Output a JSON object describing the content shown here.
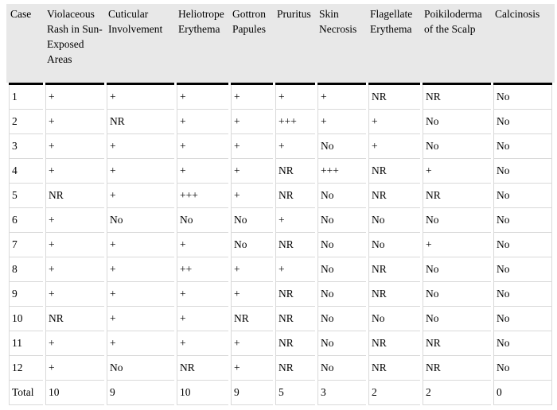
{
  "table": {
    "columns": [
      "Case",
      "Violaceous Rash in Sun-Exposed Areas",
      "Cuticular Involvement",
      "Heliotrope Erythema",
      "Gottron Papules",
      "Pruritus",
      "Skin Necrosis",
      "Flagellate Erythema",
      "Poikiloderma of the Scalp",
      "Calcinosis"
    ],
    "rows": [
      [
        "1",
        "+",
        "+",
        "+",
        "+",
        "+",
        "+",
        "NR",
        "NR",
        "No"
      ],
      [
        "2",
        "+",
        "NR",
        "+",
        "+",
        "+++",
        "+",
        "+",
        "No",
        "No"
      ],
      [
        "3",
        "+",
        "+",
        "+",
        "+",
        "+",
        "No",
        "+",
        "No",
        "No"
      ],
      [
        "4",
        "+",
        "+",
        "+",
        "+",
        "NR",
        "+++",
        "NR",
        "+",
        "No"
      ],
      [
        "5",
        "NR",
        "+",
        "+++",
        "+",
        "NR",
        "No",
        "NR",
        "NR",
        "No"
      ],
      [
        "6",
        "+",
        "No",
        "No",
        "No",
        "+",
        "No",
        "No",
        "No",
        "No"
      ],
      [
        "7",
        "+",
        "+",
        "+",
        "No",
        "NR",
        "No",
        "No",
        "+",
        "No"
      ],
      [
        "8",
        "+",
        "+",
        "++",
        "+",
        "+",
        "No",
        "NR",
        "No",
        "No"
      ],
      [
        "9",
        "+",
        "+",
        "+",
        "+",
        "NR",
        "No",
        "NR",
        "No",
        "No"
      ],
      [
        "10",
        "NR",
        "+",
        "+",
        "NR",
        "NR",
        "No",
        "No",
        "No",
        "No"
      ],
      [
        "11",
        "+",
        "+",
        "+",
        "+",
        "NR",
        "No",
        "NR",
        "NR",
        "No"
      ],
      [
        "12",
        "+",
        "No",
        "NR",
        "+",
        "NR",
        "No",
        "NR",
        "NR",
        "No"
      ],
      [
        "Total",
        "10",
        "9",
        "10",
        "9",
        "5",
        "3",
        "2",
        "2",
        "0"
      ]
    ]
  },
  "colors": {
    "header_bg": "#e8e8e8",
    "header_rule": "#000000",
    "grid_line": "#d9d9d9",
    "text": "#000000",
    "page_bg": "#ffffff"
  }
}
